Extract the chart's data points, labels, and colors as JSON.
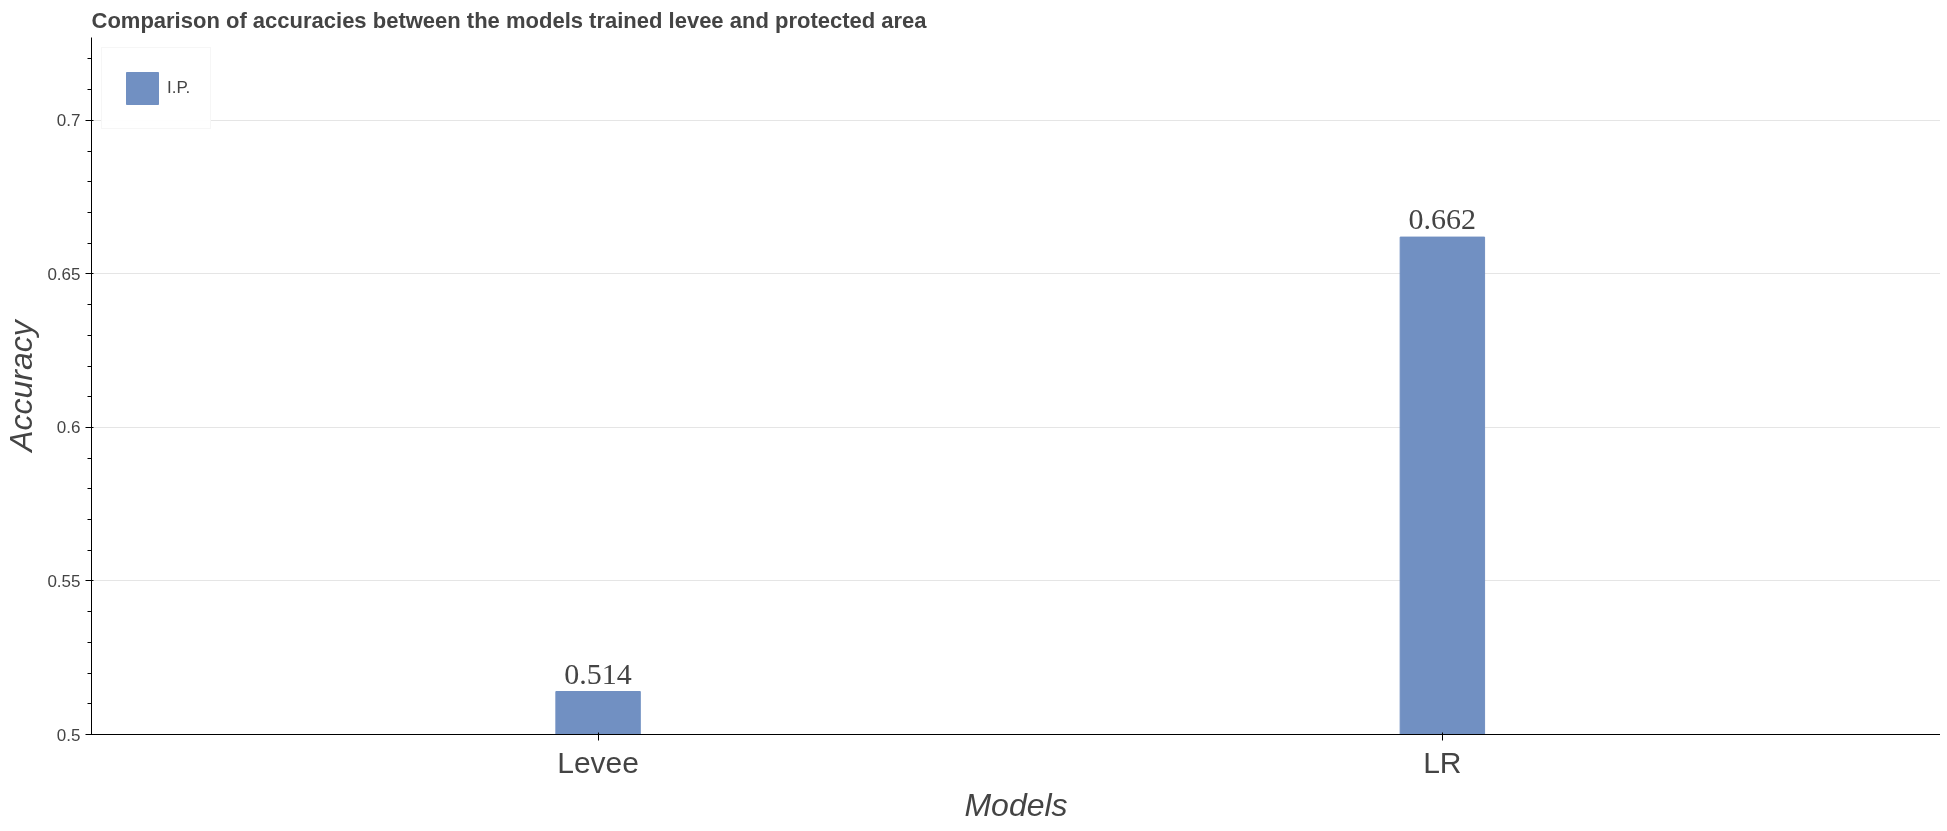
{
  "chart_data": {
    "type": "bar",
    "title": "Comparison of accuracies between the models trained levee and protected area",
    "xlabel": "Models",
    "ylabel": "Accuracy",
    "categories": [
      "Levee",
      "LR"
    ],
    "series": [
      {
        "name": "I.P.",
        "color": "#7190c2",
        "values": [
          0.514,
          0.662
        ]
      }
    ],
    "ylim": [
      0.5,
      0.727
    ],
    "yticks": [
      0.5,
      0.55,
      0.6,
      0.65,
      0.7
    ],
    "grid": "y",
    "legend": "top left",
    "data_labels": true
  }
}
